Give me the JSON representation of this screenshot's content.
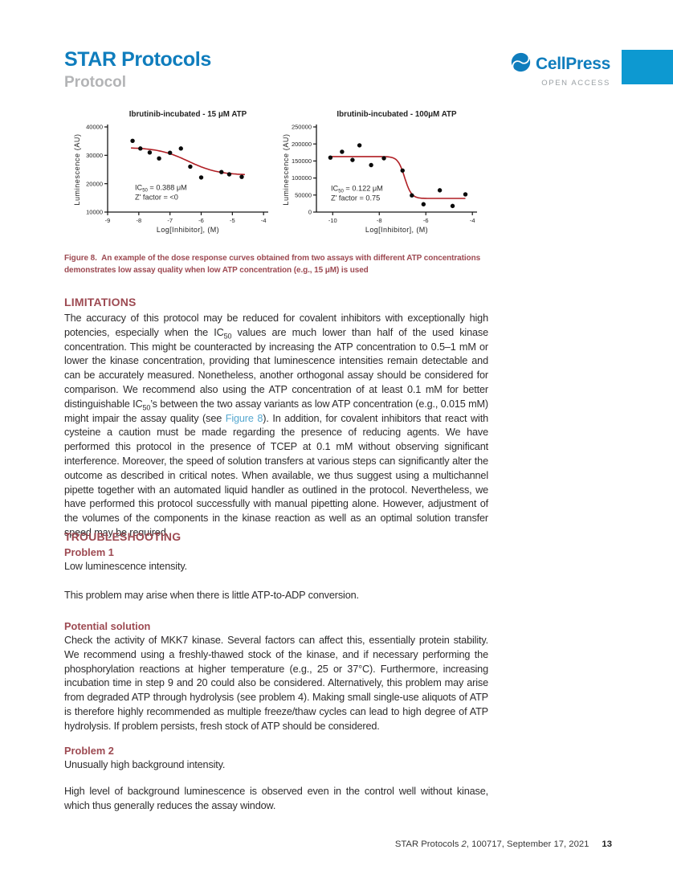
{
  "header": {
    "journal_title": "STAR Protocols",
    "article_type": "Protocol",
    "publisher_name": "CellPress",
    "open_access_label": "OPEN ACCESS"
  },
  "colors": {
    "brand_blue": "#0f7dbd",
    "accent_bar": "#0d99d1",
    "heading_maroon": "#9d4a52",
    "link_blue": "#56a8d0",
    "curve_red": "#b01e24",
    "point_black": "#0a0a0a"
  },
  "figure": {
    "caption_label": "Figure 8.",
    "caption_text": "An example of the dose response curves obtained from two assays with different ATP concentrations demonstrates low assay quality when low ATP concentration (e.g., 15 μM) is used"
  },
  "chart_data": [
    {
      "type": "scatter",
      "title": "Ibrutinib-incubated - 15 μM ATP",
      "xlabel": "Log[Inhibitor], (M)",
      "ylabel": "Luminescence (AU)",
      "xlim": [
        -9,
        -3.85
      ],
      "ylim": [
        10000,
        40000
      ],
      "xticks": [
        -9,
        -8,
        -7,
        -6,
        -5,
        -4
      ],
      "yticks": [
        10000,
        20000,
        30000,
        40000
      ],
      "grid": false,
      "points": {
        "x": [
          -8.2,
          -7.95,
          -7.65,
          -7.35,
          -7.0,
          -6.65,
          -6.35,
          -6.0,
          -5.35,
          -5.1,
          -4.7
        ],
        "y": [
          35100,
          32400,
          31000,
          28900,
          30900,
          32400,
          26000,
          22200,
          24100,
          23300,
          22400
        ]
      },
      "fit_curve": {
        "model": "four-parameter logistic",
        "top": 32800,
        "bottom": 23000,
        "log_ic50": -6.41,
        "hill": 0.9,
        "x_start": -8.25,
        "x_end": -4.6
      },
      "annotation": {
        "prefix": "IC",
        "sub": "50",
        "value_text": " = 0.388 μM",
        "z_text": "Z' factor = <0",
        "fx": 0.17,
        "fy": 0.74
      }
    },
    {
      "type": "scatter",
      "title": "Ibrutinib-incubated - 100μM ATP",
      "xlabel": "Log[Inhibitor], (M)",
      "ylabel": "Luminescence (AU)",
      "xlim": [
        -10.7,
        -3.8
      ],
      "ylim": [
        0,
        250000
      ],
      "xticks": [
        -10,
        -8,
        -6,
        -4
      ],
      "yticks": [
        0,
        50000,
        100000,
        150000,
        200000,
        250000
      ],
      "grid": false,
      "points": {
        "x": [
          -10.1,
          -9.6,
          -9.15,
          -8.85,
          -8.35,
          -7.8,
          -7.0,
          -6.6,
          -6.1,
          -5.4,
          -4.85,
          -4.3
        ],
        "y": [
          160000,
          177000,
          153000,
          196000,
          138000,
          158000,
          122000,
          49000,
          23000,
          64000,
          18000,
          52000
        ]
      },
      "fit_curve": {
        "model": "four-parameter logistic",
        "top": 163000,
        "bottom": 40000,
        "log_ic50": -6.91,
        "hill": 3.0,
        "x_start": -10.15,
        "x_end": -4.3
      },
      "annotation": {
        "prefix": "IC",
        "sub": "50",
        "value_text": " = 0.122 μM",
        "z_text": "Z' factor = 0.75",
        "fx": 0.09,
        "fy": 0.75
      }
    }
  ],
  "limitations": {
    "heading": "LIMITATIONS",
    "paragraph": [
      {
        "t": "The accuracy of this protocol may be reduced for covalent inhibitors with exceptionally high potencies, especially when the IC"
      },
      {
        "sub": "50"
      },
      {
        "t": " values are much lower than half of the used kinase concentration. This might be counteracted by increasing the ATP concentration to 0.5–1 mM or lower the kinase concentration, providing that luminescence intensities remain detectable and can be accurately measured. Nonetheless, another orthogonal assay should be considered for comparison. We recommend also using the ATP concentration of at least 0.1 mM for better distinguishable IC"
      },
      {
        "sub": "50"
      },
      {
        "t": "’s between the two assay variants as low ATP concentration (e.g., 0.015 mM) might impair the assay quality (see "
      },
      {
        "link": "Figure 8"
      },
      {
        "t": "). In addition, for covalent inhibitors that react with cysteine a caution must be made regarding the presence of reducing agents. We have performed this protocol in the presence of TCEP at 0.1 mM without observing significant interference. Moreover, the speed of solution transfers at various steps can significantly alter the outcome as described in critical notes. When available, we thus suggest using a multichannel pipette together with an automated liquid handler as outlined in the protocol. Nevertheless, we have performed this protocol successfully with manual pipetting alone. However, adjustment of the volumes of the components in the kinase reaction as well as an optimal solution transfer speed may be required."
      }
    ]
  },
  "troubleshooting": {
    "heading": "TROUBLESHOOTING",
    "problem1": {
      "heading": "Problem 1",
      "symptom": "Low luminescence intensity.",
      "cause": "This problem may arise when there is little ATP-to-ADP conversion."
    },
    "potential_solution": {
      "heading": "Potential solution",
      "paragraph": "Check the activity of MKK7 kinase. Several factors can affect this, essentially protein stability. We recommend using a freshly-thawed stock of the kinase, and if necessary performing the phosphorylation reactions at higher temperature (e.g., 25 or 37°C). Furthermore, increasing incubation time in step 9 and 20 could also be considered. Alternatively, this problem may arise from degraded ATP through hydrolysis (see problem 4). Making small single-use aliquots of ATP is therefore highly recommended as multiple freeze/thaw cycles can lead to high degree of ATP hydrolysis. If problem persists, fresh stock of ATP should be considered."
    },
    "problem2": {
      "heading": "Problem 2",
      "symptom": "Unusually high background intensity.",
      "cause": "High level of background luminescence is observed even in the control well without kinase, which thus generally reduces the assay window."
    }
  },
  "footer": {
    "citation_segments": [
      {
        "t": "STAR Protocols "
      },
      {
        "em": "2"
      },
      {
        "t": ", 100717, September 17, 2021"
      }
    ],
    "page_number": "13"
  }
}
